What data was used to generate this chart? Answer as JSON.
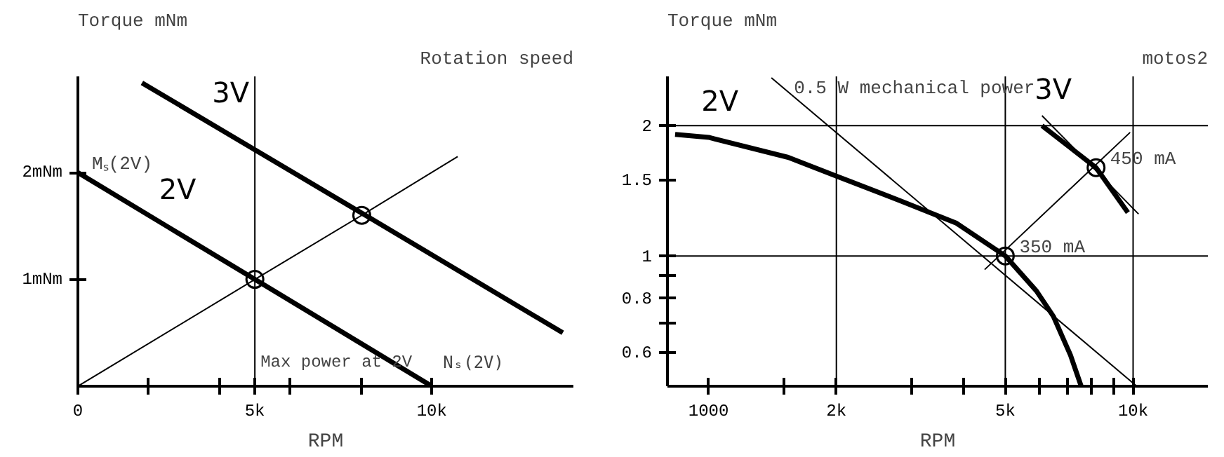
{
  "chart_data": [
    {
      "type": "line",
      "ylabel": "Torque mNm",
      "xlabel": "RPM",
      "xlim": [
        0,
        14000
      ],
      "ylim": [
        0,
        2.9
      ],
      "xticks": [
        0,
        {
          "value": 2000,
          "label": null
        },
        {
          "value": 4000,
          "label": null
        },
        {
          "value": 5000,
          "label": "5k"
        },
        {
          "value": 6000,
          "label": null
        },
        {
          "value": 8000,
          "label": null
        },
        {
          "value": 10000,
          "label": "10k"
        }
      ],
      "yticks": [
        {
          "value": 1,
          "label": "1mNm"
        },
        {
          "value": 2,
          "label": "2mNm"
        }
      ],
      "series": [
        {
          "name": "2V",
          "color": "#000000",
          "x": [
            0,
            2500,
            5000,
            7500,
            10000
          ],
          "values": [
            2.0,
            1.5,
            1.0,
            0.5,
            0.0
          ]
        },
        {
          "name": "3V",
          "color": "#000000",
          "x": [
            1810,
            4000,
            8020,
            13700
          ],
          "values": [
            2.84,
            2.41,
            1.62,
            0.5
          ]
        },
        {
          "color": "#000000",
          "x": [
            0,
            5000,
            8020,
            10730
          ],
          "values": [
            0,
            1.0,
            1.6,
            2.15
          ]
        },
        {
          "type": "scatter",
          "marker": "circle",
          "color": "#000000",
          "x": [
            5000,
            8020
          ],
          "values": [
            1.0,
            1.6
          ]
        }
      ],
      "ref_lines": [
        {
          "axis": "x",
          "value": 5000,
          "label": "Max power at 2V"
        }
      ],
      "annotations": [
        {
          "text": "Mₛ(2V)",
          "x": 0,
          "y": 2
        },
        {
          "text": "Nₛ(2V)",
          "x": 10000,
          "y": 0
        },
        "Rotation speed"
      ],
      "marker": "none",
      "line_style": "solid",
      "grid": false,
      "legend": false
    },
    {
      "type": "line",
      "ylabel": "Torque mNm",
      "xlabel": "RPM",
      "log": "xy",
      "xlim": [
        800,
        15000
      ],
      "ylim": [
        0.5,
        2.6
      ],
      "xticks": [
        1000,
        {
          "value": 1500,
          "label": null
        },
        {
          "value": 2000,
          "label": "2k"
        },
        {
          "value": 3000,
          "label": null
        },
        {
          "value": 4000,
          "label": null
        },
        {
          "value": 5000,
          "label": "5k"
        },
        {
          "value": 6000,
          "label": null
        },
        {
          "value": 7000,
          "label": null
        },
        {
          "value": 8000,
          "label": null
        },
        {
          "value": 9000,
          "label": null
        },
        {
          "value": 10000,
          "label": "10k"
        }
      ],
      "yticks": [
        0.6,
        {
          "value": 0.7,
          "label": null
        },
        0.8,
        {
          "value": 0.9,
          "label": null
        },
        1,
        1.5,
        2
      ],
      "series": [
        {
          "name": "2V",
          "color": "#000000",
          "x": [
            834,
            1000,
            1540,
            2000,
            2836,
            3840,
            5000,
            5920,
            6490,
            7120,
            7545
          ],
          "values": [
            1.91,
            1.88,
            1.69,
            1.53,
            1.34,
            1.19,
            1.0,
            0.83,
            0.725,
            0.59,
            0.5
          ]
        },
        {
          "name": "3V",
          "color": "#000000",
          "x": [
            6100,
            8180,
            9720
          ],
          "values": [
            2.0,
            1.6,
            1.26
          ]
        },
        {
          "color": "#000000",
          "x": [
            1406,
            10200
          ],
          "values": [
            2.58,
            0.5
          ]
        },
        {
          "color": "#000000",
          "x": [
            6100,
            10300
          ],
          "values": [
            2.11,
            1.25
          ]
        },
        {
          "color": "#000000",
          "x": [
            4470,
            9840
          ],
          "values": [
            0.93,
            1.93
          ]
        },
        {
          "type": "scatter",
          "marker": "circle",
          "color": "#000000",
          "x": [
            5000,
            8180
          ],
          "values": [
            1.0,
            1.6
          ]
        }
      ],
      "ref_lines": [
        {
          "axis": "y",
          "value": 2
        },
        {
          "axis": "y",
          "value": 1
        },
        {
          "axis": "x",
          "value": 2000
        },
        {
          "axis": "x",
          "value": 5000
        },
        {
          "axis": "x",
          "value": 10000
        }
      ],
      "annotations": [
        {
          "text": "350 mA",
          "x": 5000,
          "y": 1
        },
        {
          "text": "450 mA",
          "x": 8180,
          "y": 1.6
        },
        {
          "text": "0.5 W mechanical power",
          "x": 1406,
          "y": 2.58
        },
        "motos2"
      ],
      "marker": "none",
      "line_style": "solid",
      "grid": false,
      "legend": false
    }
  ]
}
